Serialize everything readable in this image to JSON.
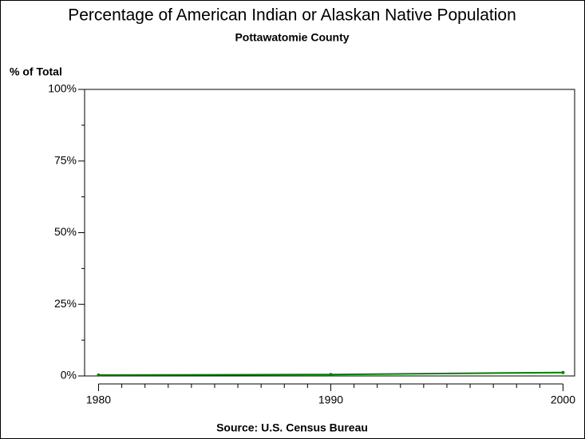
{
  "chart_data": {
    "type": "line",
    "title": "Percentage of American Indian or Alaskan Native Population",
    "subtitle": "Pottawatomie County",
    "y_label": "% of Total",
    "source": "Source: U.S. Census Bureau",
    "x": [
      1980,
      1990,
      2000
    ],
    "series": [
      {
        "name": "Pottawatomie County",
        "color": "#008000",
        "values": [
          0.3,
          0.5,
          1.2
        ]
      }
    ],
    "xlim": [
      1979.4,
      2000.5
    ],
    "xticks": [
      1980,
      1990,
      2000
    ],
    "xminorticks": [
      1981,
      1982,
      1983,
      1984,
      1985,
      1986,
      1987,
      1988,
      1989,
      1991,
      1992,
      1993,
      1994,
      1995,
      1996,
      1997,
      1998,
      1999
    ],
    "ylim": [
      0,
      100
    ],
    "yticks": [
      {
        "value": 0,
        "label": "0%"
      },
      {
        "value": 25,
        "label": "25%"
      },
      {
        "value": 50,
        "label": "50%"
      },
      {
        "value": 75,
        "label": "75%"
      },
      {
        "value": 100,
        "label": "100%"
      }
    ],
    "yminorticks": [
      12.5,
      37.5,
      62.5,
      87.5
    ]
  }
}
